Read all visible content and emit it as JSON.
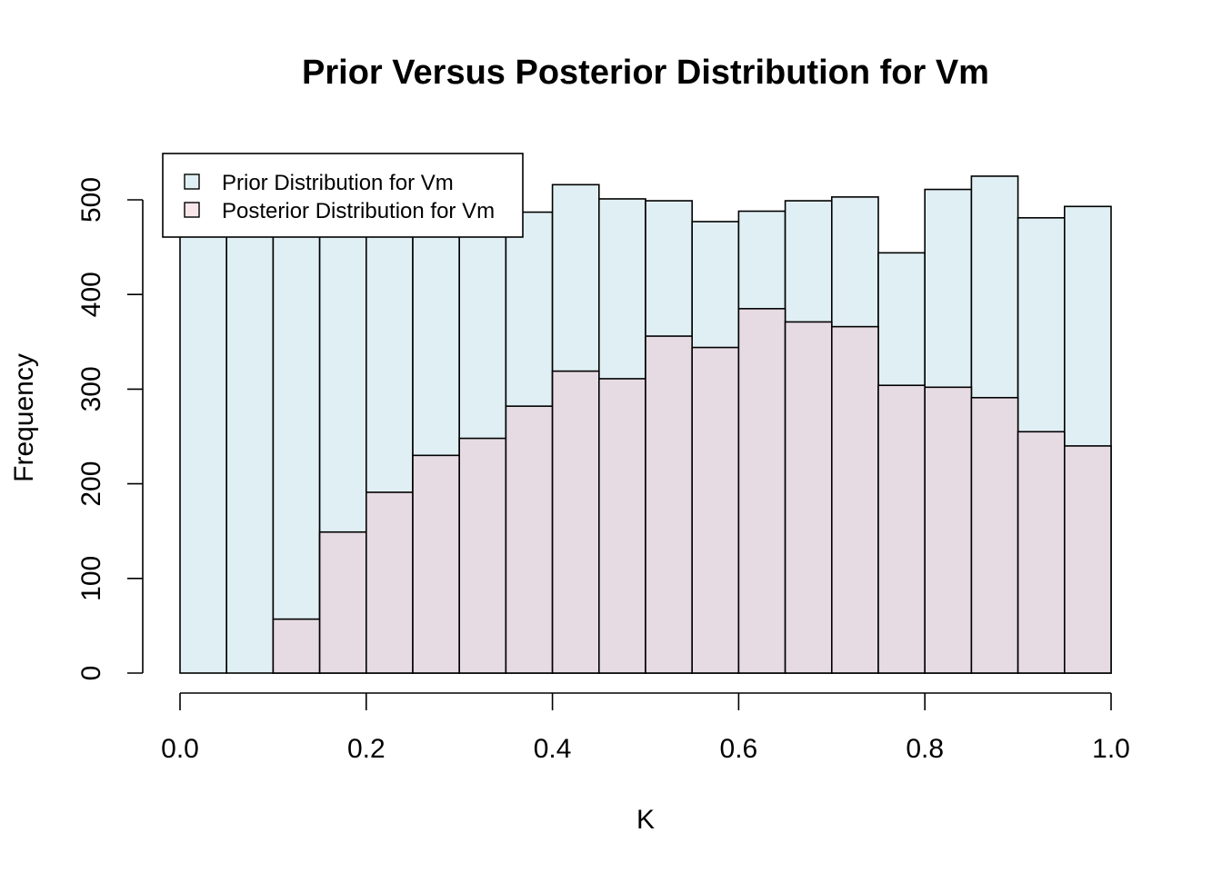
{
  "chart_data": {
    "type": "bar",
    "title": "Prior Versus Posterior Distribution for Vm",
    "xlabel": "K",
    "ylabel": "Frequency",
    "xlim": [
      0.0,
      1.0
    ],
    "ylim": [
      0,
      550
    ],
    "x_ticks": [
      "0.0",
      "0.2",
      "0.4",
      "0.6",
      "0.8",
      "1.0"
    ],
    "y_ticks": [
      "0",
      "100",
      "200",
      "300",
      "400",
      "500"
    ],
    "bin_edges": [
      0.0,
      0.05,
      0.1,
      0.15,
      0.2,
      0.25,
      0.3,
      0.35,
      0.4,
      0.45,
      0.5,
      0.55,
      0.6,
      0.65,
      0.7,
      0.75,
      0.8,
      0.85,
      0.9,
      0.95,
      1.0
    ],
    "legend_position": "top-left",
    "grid": false,
    "series": [
      {
        "name": "Prior Distribution for Vm",
        "color": "#e0eff4",
        "values": [
          510,
          505,
          500,
          495,
          490,
          500,
          495,
          487,
          516,
          501,
          499,
          477,
          488,
          499,
          503,
          444,
          511,
          525,
          481,
          493
        ]
      },
      {
        "name": "Posterior Distribution for Vm",
        "color": "#e7dbe3",
        "values": [
          0,
          0,
          57,
          149,
          191,
          230,
          248,
          282,
          319,
          311,
          356,
          344,
          385,
          371,
          366,
          304,
          302,
          291,
          255,
          240
        ]
      }
    ]
  },
  "legend": {
    "prior_swatch_color": "#e0eff4",
    "posterior_swatch_color": "#f7e6ea"
  }
}
